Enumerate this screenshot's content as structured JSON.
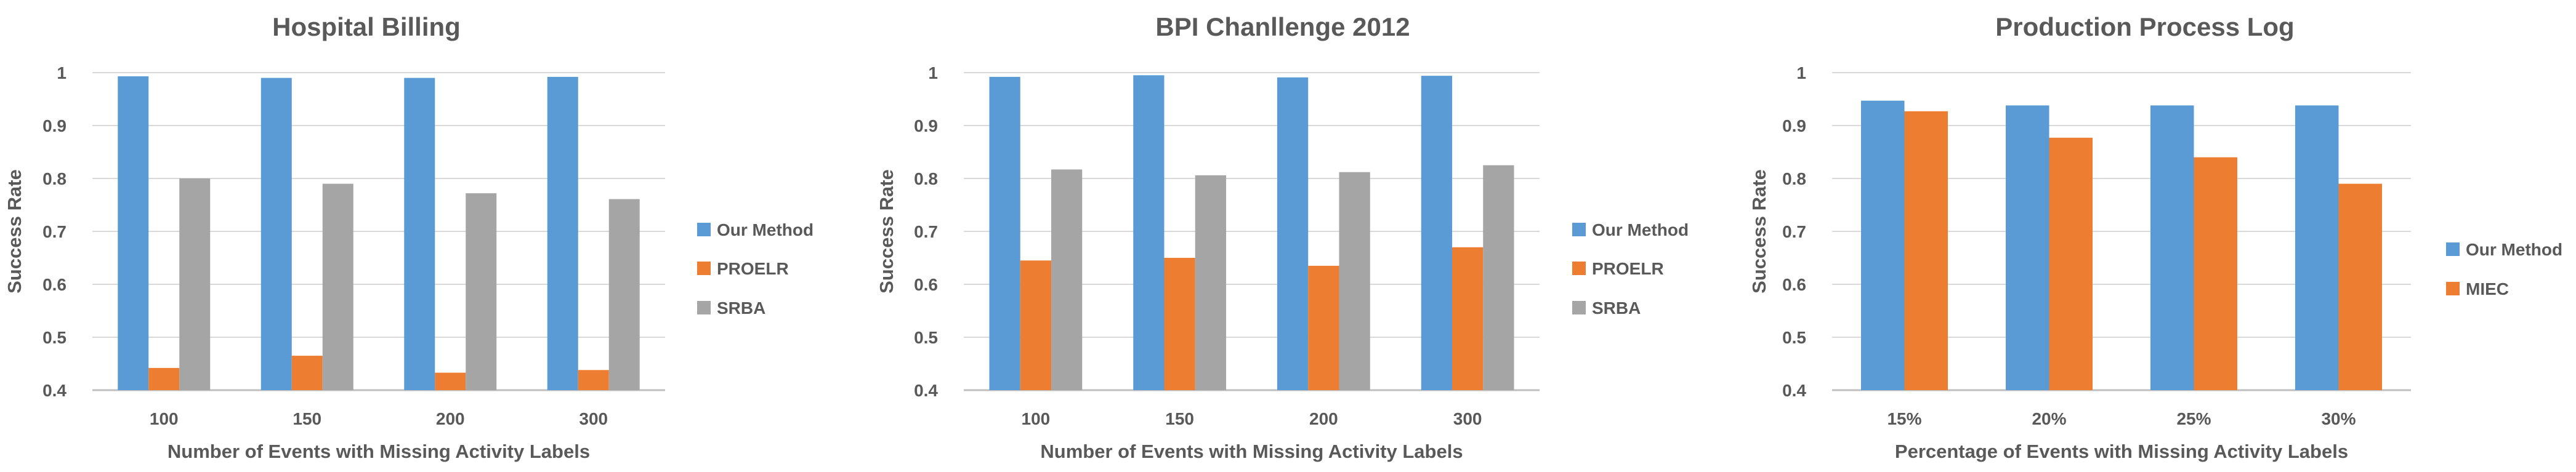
{
  "chart_data": [
    {
      "type": "bar",
      "title": "Hospital Billing",
      "xlabel": "Number of Events with Missing Activity Labels",
      "ylabel": "Success Rate",
      "categories": [
        "100",
        "150",
        "200",
        "300"
      ],
      "yticks": [
        "0.4",
        "0.5",
        "0.6",
        "0.7",
        "0.8",
        "0.9",
        "1"
      ],
      "ylim": [
        0.4,
        1.0
      ],
      "grid": true,
      "legend_position": "right",
      "series": [
        {
          "name": "Our Method",
          "color": "#5B9BD5",
          "values": [
            0.993,
            0.99,
            0.99,
            0.992
          ]
        },
        {
          "name": "PROELR",
          "color": "#ED7D31",
          "values": [
            0.442,
            0.465,
            0.433,
            0.438
          ]
        },
        {
          "name": "SRBA",
          "color": "#A5A5A5",
          "values": [
            0.8,
            0.79,
            0.772,
            0.761
          ]
        }
      ]
    },
    {
      "type": "bar",
      "title": "BPI Chanllenge 2012",
      "xlabel": "Number of Events with Missing Activity Labels",
      "ylabel": "Success Rate",
      "categories": [
        "100",
        "150",
        "200",
        "300"
      ],
      "yticks": [
        "0.4",
        "0.5",
        "0.6",
        "0.7",
        "0.8",
        "0.9",
        "1"
      ],
      "ylim": [
        0.4,
        1.0
      ],
      "grid": true,
      "legend_position": "right",
      "series": [
        {
          "name": "Our Method",
          "color": "#5B9BD5",
          "values": [
            0.992,
            0.995,
            0.991,
            0.994
          ]
        },
        {
          "name": "PROELR",
          "color": "#ED7D31",
          "values": [
            0.645,
            0.65,
            0.635,
            0.67
          ]
        },
        {
          "name": "SRBA",
          "color": "#A5A5A5",
          "values": [
            0.817,
            0.806,
            0.812,
            0.825
          ]
        }
      ]
    },
    {
      "type": "bar",
      "title": "Production Process Log",
      "xlabel": "Percentage of Events with Missing Activity Labels",
      "ylabel": "Success Rate",
      "categories": [
        "15%",
        "20%",
        "25%",
        "30%"
      ],
      "yticks": [
        "0.4",
        "0.5",
        "0.6",
        "0.7",
        "0.8",
        "0.9",
        "1"
      ],
      "ylim": [
        0.4,
        1.0
      ],
      "grid": true,
      "legend_position": "right",
      "series": [
        {
          "name": "Our Method",
          "color": "#5B9BD5",
          "values": [
            0.947,
            0.938,
            0.938,
            0.938
          ]
        },
        {
          "name": "MIEC",
          "color": "#ED7D31",
          "values": [
            0.927,
            0.877,
            0.84,
            0.79
          ]
        }
      ]
    }
  ]
}
